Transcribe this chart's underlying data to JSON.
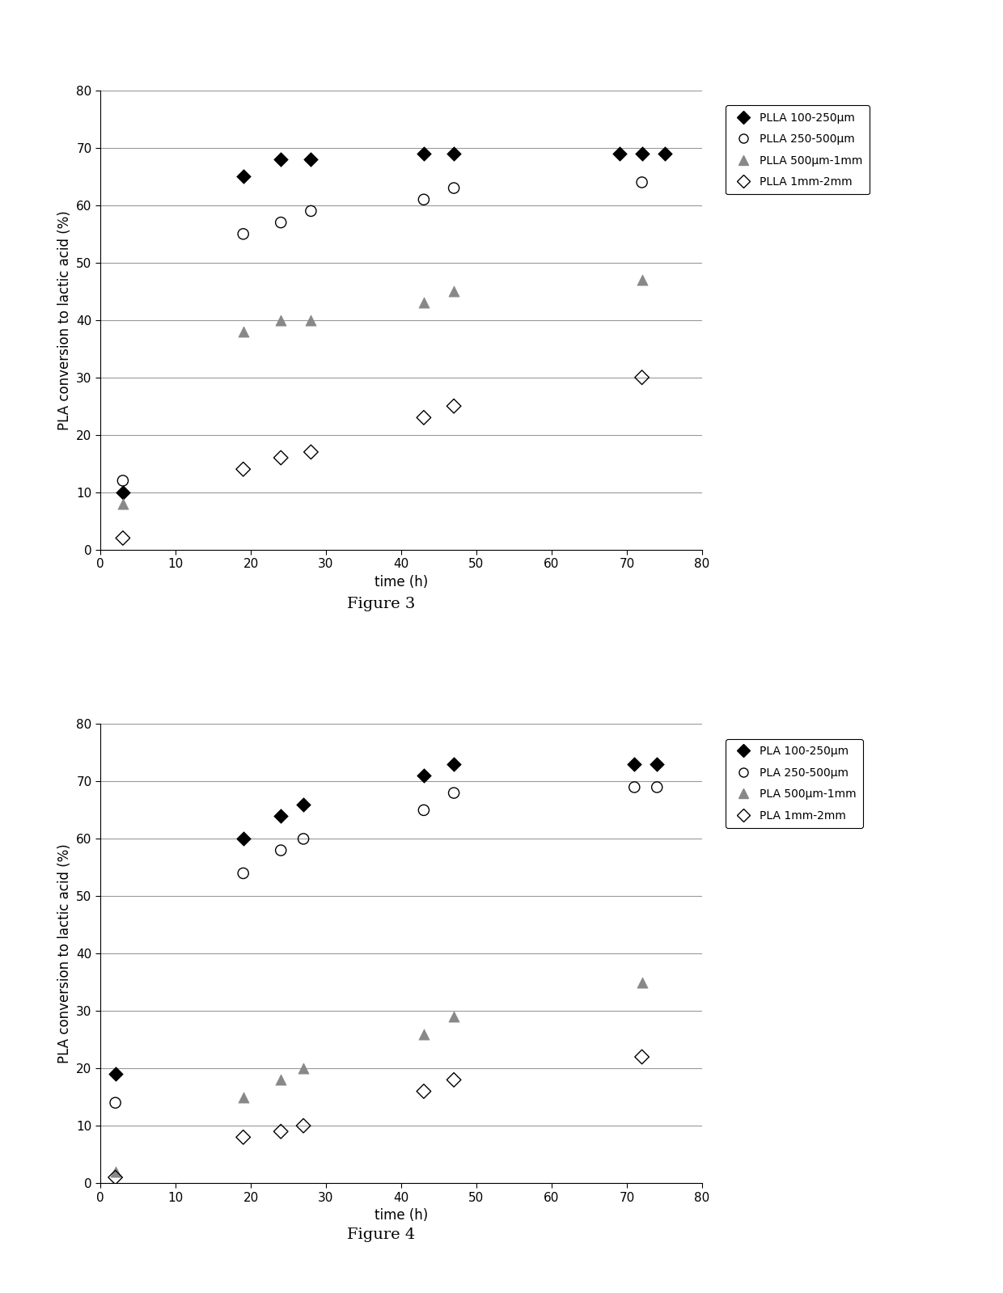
{
  "fig3": {
    "title": "Figure 3",
    "series": [
      {
        "label": "PLLA 100-250μm",
        "marker": "D",
        "color": "black",
        "filled": true,
        "x": [
          3,
          19,
          24,
          28,
          43,
          47,
          69,
          72,
          75
        ],
        "y": [
          10,
          65,
          68,
          68,
          69,
          69,
          69,
          69,
          69
        ]
      },
      {
        "label": "PLLA 250-500μm",
        "marker": "o",
        "color": "black",
        "filled": false,
        "x": [
          3,
          19,
          24,
          28,
          43,
          47,
          72
        ],
        "y": [
          12,
          55,
          57,
          59,
          61,
          63,
          64
        ]
      },
      {
        "label": "PLLA 500μm-1mm",
        "marker": "^",
        "color": "gray",
        "filled": true,
        "x": [
          3,
          19,
          24,
          28,
          43,
          47,
          72
        ],
        "y": [
          8,
          38,
          40,
          40,
          43,
          45,
          47
        ]
      },
      {
        "label": "PLLA 1mm-2mm",
        "marker": "D",
        "color": "black",
        "filled": false,
        "x": [
          3,
          19,
          24,
          28,
          43,
          47,
          72
        ],
        "y": [
          2,
          14,
          16,
          17,
          23,
          25,
          30
        ]
      }
    ],
    "xlabel": "time (h)",
    "ylabel": "PLA conversion to lactic acid (%)",
    "xlim": [
      0,
      80
    ],
    "ylim": [
      0,
      80
    ],
    "xticks": [
      0,
      10,
      20,
      30,
      40,
      50,
      60,
      70,
      80
    ],
    "yticks": [
      0,
      10,
      20,
      30,
      40,
      50,
      60,
      70,
      80
    ]
  },
  "fig4": {
    "title": "Figure 4",
    "series": [
      {
        "label": "PLA 100-250μm",
        "marker": "D",
        "color": "black",
        "filled": true,
        "x": [
          2,
          19,
          24,
          27,
          43,
          47,
          71,
          74
        ],
        "y": [
          19,
          60,
          64,
          66,
          71,
          73,
          73,
          73
        ]
      },
      {
        "label": "PLA 250-500μm",
        "marker": "o",
        "color": "black",
        "filled": false,
        "x": [
          2,
          19,
          24,
          27,
          43,
          47,
          71,
          74
        ],
        "y": [
          14,
          54,
          58,
          60,
          65,
          68,
          69,
          69
        ]
      },
      {
        "label": "PLA 500μm-1mm",
        "marker": "^",
        "color": "gray",
        "filled": true,
        "x": [
          2,
          19,
          24,
          27,
          43,
          47,
          72
        ],
        "y": [
          2,
          15,
          18,
          20,
          26,
          29,
          35
        ]
      },
      {
        "label": "PLA 1mm-2mm",
        "marker": "D",
        "color": "black",
        "filled": false,
        "x": [
          2,
          19,
          24,
          27,
          43,
          47,
          72
        ],
        "y": [
          1,
          8,
          9,
          10,
          16,
          18,
          22
        ]
      }
    ],
    "xlabel": "time (h)",
    "ylabel": "PLA conversion to lactic acid (%)",
    "xlim": [
      0,
      80
    ],
    "ylim": [
      0,
      80
    ],
    "xticks": [
      0,
      10,
      20,
      30,
      40,
      50,
      60,
      70,
      80
    ],
    "yticks": [
      0,
      10,
      20,
      30,
      40,
      50,
      60,
      70,
      80
    ]
  },
  "background_color": "#ffffff",
  "marker_size_diamond": 80,
  "marker_size_circle": 90,
  "marker_size_triangle": 90,
  "label_font_size": 12,
  "tick_font_size": 11,
  "legend_font_size": 10,
  "caption_font_size": 14,
  "grid_color": "#999999",
  "grid_linewidth": 0.8
}
